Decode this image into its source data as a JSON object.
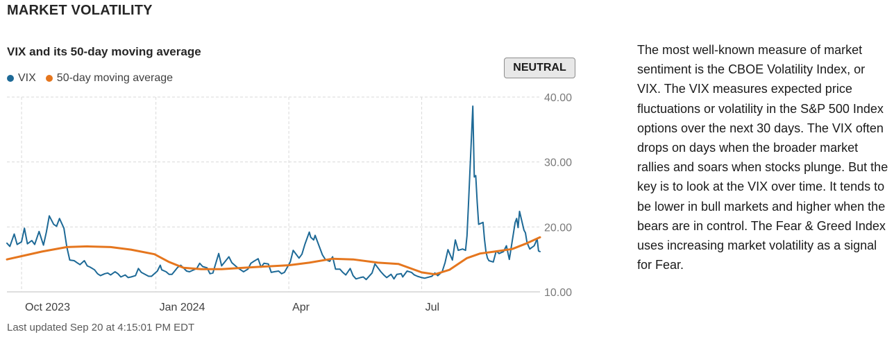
{
  "header": {
    "title": "MARKET VOLATILITY"
  },
  "status_badge": "NEUTRAL",
  "updated": "Last updated Sep 20 at 4:15:01 PM EDT",
  "description": "The most well-known measure of market sentiment is the CBOE Volatility Index, or VIX. The VIX measures expected price fluctuations or volatility in the S&P 500 Index options over the next 30 days. The VIX often drops on days when the broader market rallies and soars when stocks plunge. But the key is to look at the VIX over time. It tends to be lower in bull markets and higher when the bears are in control. The Fear & Greed Index uses increasing market volatility as a signal for Fear.",
  "colors": {
    "vix": "#1d6996",
    "ma": "#e5761e",
    "grid": "#d9d9d9"
  },
  "chart_data": {
    "type": "line",
    "title": "VIX and its 50-day moving average",
    "xlabel": "",
    "ylabel": "",
    "grid": true,
    "legend_position": "top-left",
    "y_axis_position": "right",
    "ylim": [
      10,
      40
    ],
    "yticks": [
      "10.00",
      "20.00",
      "30.00",
      "40.00"
    ],
    "xticks": [
      {
        "date": "2023-10-01",
        "label": "Oct 2023"
      },
      {
        "date": "2024-01-01",
        "label": "Jan 2024"
      },
      {
        "date": "2024-04-01",
        "label": "Apr"
      },
      {
        "date": "2024-07-01",
        "label": "Jul"
      }
    ],
    "x_range": [
      "2023-09-21",
      "2024-09-20"
    ],
    "series": [
      {
        "name": "VIX",
        "color": "#1d6996",
        "points": [
          [
            "2023-09-21",
            17.5
          ],
          [
            "2023-09-23",
            17.0
          ],
          [
            "2023-09-26",
            18.9
          ],
          [
            "2023-09-28",
            17.3
          ],
          [
            "2023-10-01",
            17.7
          ],
          [
            "2023-10-03",
            19.8
          ],
          [
            "2023-10-05",
            17.4
          ],
          [
            "2023-10-08",
            17.9
          ],
          [
            "2023-10-10",
            17.3
          ],
          [
            "2023-10-13",
            19.3
          ],
          [
            "2023-10-16",
            17.2
          ],
          [
            "2023-10-18",
            19.2
          ],
          [
            "2023-10-20",
            21.7
          ],
          [
            "2023-10-23",
            20.4
          ],
          [
            "2023-10-25",
            20.1
          ],
          [
            "2023-10-27",
            21.3
          ],
          [
            "2023-10-30",
            19.8
          ],
          [
            "2023-11-01",
            16.9
          ],
          [
            "2023-11-03",
            14.9
          ],
          [
            "2023-11-06",
            14.8
          ],
          [
            "2023-11-08",
            14.5
          ],
          [
            "2023-11-10",
            14.2
          ],
          [
            "2023-11-13",
            14.8
          ],
          [
            "2023-11-15",
            14.0
          ],
          [
            "2023-11-17",
            13.8
          ],
          [
            "2023-11-20",
            13.4
          ],
          [
            "2023-11-22",
            12.8
          ],
          [
            "2023-11-24",
            12.5
          ],
          [
            "2023-11-27",
            12.8
          ],
          [
            "2023-11-29",
            12.9
          ],
          [
            "2023-12-01",
            12.6
          ],
          [
            "2023-12-04",
            13.1
          ],
          [
            "2023-12-06",
            12.8
          ],
          [
            "2023-12-08",
            12.3
          ],
          [
            "2023-12-11",
            12.6
          ],
          [
            "2023-12-13",
            12.2
          ],
          [
            "2023-12-15",
            12.3
          ],
          [
            "2023-12-18",
            12.5
          ],
          [
            "2023-12-20",
            13.6
          ],
          [
            "2023-12-22",
            13.0
          ],
          [
            "2023-12-27",
            12.4
          ],
          [
            "2023-12-29",
            12.4
          ],
          [
            "2024-01-02",
            13.2
          ],
          [
            "2024-01-04",
            14.1
          ],
          [
            "2024-01-05",
            13.4
          ],
          [
            "2024-01-08",
            13.1
          ],
          [
            "2024-01-10",
            12.7
          ],
          [
            "2024-01-12",
            12.7
          ],
          [
            "2024-01-16",
            13.8
          ],
          [
            "2024-01-18",
            14.1
          ],
          [
            "2024-01-22",
            13.2
          ],
          [
            "2024-01-24",
            13.1
          ],
          [
            "2024-01-26",
            13.3
          ],
          [
            "2024-01-29",
            13.6
          ],
          [
            "2024-01-31",
            14.4
          ],
          [
            "2024-02-02",
            13.9
          ],
          [
            "2024-02-05",
            13.7
          ],
          [
            "2024-02-07",
            12.8
          ],
          [
            "2024-02-09",
            12.9
          ],
          [
            "2024-02-13",
            15.9
          ],
          [
            "2024-02-15",
            14.0
          ],
          [
            "2024-02-20",
            15.4
          ],
          [
            "2024-02-22",
            14.5
          ],
          [
            "2024-02-26",
            13.7
          ],
          [
            "2024-02-28",
            13.4
          ],
          [
            "2024-03-01",
            13.1
          ],
          [
            "2024-03-04",
            13.5
          ],
          [
            "2024-03-06",
            14.4
          ],
          [
            "2024-03-08",
            14.7
          ],
          [
            "2024-03-11",
            15.1
          ],
          [
            "2024-03-13",
            13.8
          ],
          [
            "2024-03-15",
            14.4
          ],
          [
            "2024-03-18",
            14.3
          ],
          [
            "2024-03-20",
            13.0
          ],
          [
            "2024-03-22",
            13.1
          ],
          [
            "2024-03-25",
            13.2
          ],
          [
            "2024-03-27",
            12.8
          ],
          [
            "2024-03-29",
            13.0
          ],
          [
            "2024-04-02",
            14.6
          ],
          [
            "2024-04-04",
            16.4
          ],
          [
            "2024-04-08",
            15.2
          ],
          [
            "2024-04-10",
            15.8
          ],
          [
            "2024-04-12",
            17.3
          ],
          [
            "2024-04-15",
            19.2
          ],
          [
            "2024-04-16",
            18.4
          ],
          [
            "2024-04-18",
            18.0
          ],
          [
            "2024-04-19",
            18.7
          ],
          [
            "2024-04-22",
            16.9
          ],
          [
            "2024-04-24",
            15.7
          ],
          [
            "2024-04-26",
            15.0
          ],
          [
            "2024-04-29",
            14.7
          ],
          [
            "2024-05-01",
            15.4
          ],
          [
            "2024-05-03",
            13.5
          ],
          [
            "2024-05-06",
            13.5
          ],
          [
            "2024-05-08",
            13.0
          ],
          [
            "2024-05-10",
            12.6
          ],
          [
            "2024-05-13",
            13.6
          ],
          [
            "2024-05-15",
            12.5
          ],
          [
            "2024-05-17",
            12.0
          ],
          [
            "2024-05-20",
            12.2
          ],
          [
            "2024-05-22",
            12.3
          ],
          [
            "2024-05-24",
            11.9
          ],
          [
            "2024-05-28",
            12.9
          ],
          [
            "2024-05-30",
            14.3
          ],
          [
            "2024-06-03",
            13.1
          ],
          [
            "2024-06-05",
            12.6
          ],
          [
            "2024-06-07",
            12.2
          ],
          [
            "2024-06-10",
            12.7
          ],
          [
            "2024-06-12",
            12.0
          ],
          [
            "2024-06-14",
            12.7
          ],
          [
            "2024-06-17",
            12.8
          ],
          [
            "2024-06-18",
            12.3
          ],
          [
            "2024-06-21",
            13.2
          ],
          [
            "2024-06-24",
            13.0
          ],
          [
            "2024-06-26",
            12.6
          ],
          [
            "2024-06-28",
            12.4
          ],
          [
            "2024-07-01",
            12.2
          ],
          [
            "2024-07-03",
            12.1
          ],
          [
            "2024-07-08",
            12.4
          ],
          [
            "2024-07-10",
            12.9
          ],
          [
            "2024-07-12",
            12.5
          ],
          [
            "2024-07-15",
            13.1
          ],
          [
            "2024-07-17",
            14.5
          ],
          [
            "2024-07-19",
            16.5
          ],
          [
            "2024-07-22",
            14.9
          ],
          [
            "2024-07-24",
            18.0
          ],
          [
            "2024-07-26",
            16.4
          ],
          [
            "2024-07-29",
            16.6
          ],
          [
            "2024-07-31",
            16.4
          ],
          [
            "2024-08-01",
            18.6
          ],
          [
            "2024-08-02",
            23.4
          ],
          [
            "2024-08-05",
            38.6
          ],
          [
            "2024-08-06",
            27.7
          ],
          [
            "2024-08-07",
            27.9
          ],
          [
            "2024-08-08",
            23.8
          ],
          [
            "2024-08-09",
            20.4
          ],
          [
            "2024-08-12",
            20.7
          ],
          [
            "2024-08-13",
            18.1
          ],
          [
            "2024-08-14",
            16.2
          ],
          [
            "2024-08-15",
            15.2
          ],
          [
            "2024-08-16",
            14.8
          ],
          [
            "2024-08-19",
            14.6
          ],
          [
            "2024-08-21",
            16.3
          ],
          [
            "2024-08-23",
            15.9
          ],
          [
            "2024-08-26",
            16.2
          ],
          [
            "2024-08-28",
            17.1
          ],
          [
            "2024-08-30",
            15.0
          ],
          [
            "2024-09-03",
            20.7
          ],
          [
            "2024-09-04",
            21.3
          ],
          [
            "2024-09-05",
            19.9
          ],
          [
            "2024-09-06",
            22.4
          ],
          [
            "2024-09-09",
            19.5
          ],
          [
            "2024-09-10",
            19.1
          ],
          [
            "2024-09-11",
            17.7
          ],
          [
            "2024-09-12",
            17.1
          ],
          [
            "2024-09-13",
            16.6
          ],
          [
            "2024-09-16",
            17.1
          ],
          [
            "2024-09-17",
            17.6
          ],
          [
            "2024-09-18",
            18.2
          ],
          [
            "2024-09-19",
            16.3
          ],
          [
            "2024-09-20",
            16.2
          ]
        ]
      },
      {
        "name": "50-day moving average",
        "color": "#e5761e",
        "points": [
          [
            "2023-09-21",
            15.0
          ],
          [
            "2023-10-01",
            15.5
          ],
          [
            "2023-10-15",
            16.2
          ],
          [
            "2023-11-01",
            16.9
          ],
          [
            "2023-11-15",
            17.0
          ],
          [
            "2023-12-01",
            16.9
          ],
          [
            "2023-12-15",
            16.5
          ],
          [
            "2023-12-31",
            15.8
          ],
          [
            "2024-01-10",
            14.6
          ],
          [
            "2024-01-20",
            13.7
          ],
          [
            "2024-02-01",
            13.5
          ],
          [
            "2024-02-15",
            13.5
          ],
          [
            "2024-03-01",
            13.7
          ],
          [
            "2024-03-15",
            13.9
          ],
          [
            "2024-04-01",
            14.1
          ],
          [
            "2024-04-15",
            14.5
          ],
          [
            "2024-05-01",
            15.1
          ],
          [
            "2024-05-15",
            15.0
          ],
          [
            "2024-06-01",
            14.5
          ],
          [
            "2024-06-15",
            14.3
          ],
          [
            "2024-07-01",
            13.0
          ],
          [
            "2024-07-10",
            12.7
          ],
          [
            "2024-07-20",
            13.4
          ],
          [
            "2024-08-01",
            15.2
          ],
          [
            "2024-08-10",
            15.9
          ],
          [
            "2024-08-20",
            16.2
          ],
          [
            "2024-09-01",
            16.6
          ],
          [
            "2024-09-10",
            17.4
          ],
          [
            "2024-09-20",
            18.4
          ]
        ]
      }
    ]
  }
}
